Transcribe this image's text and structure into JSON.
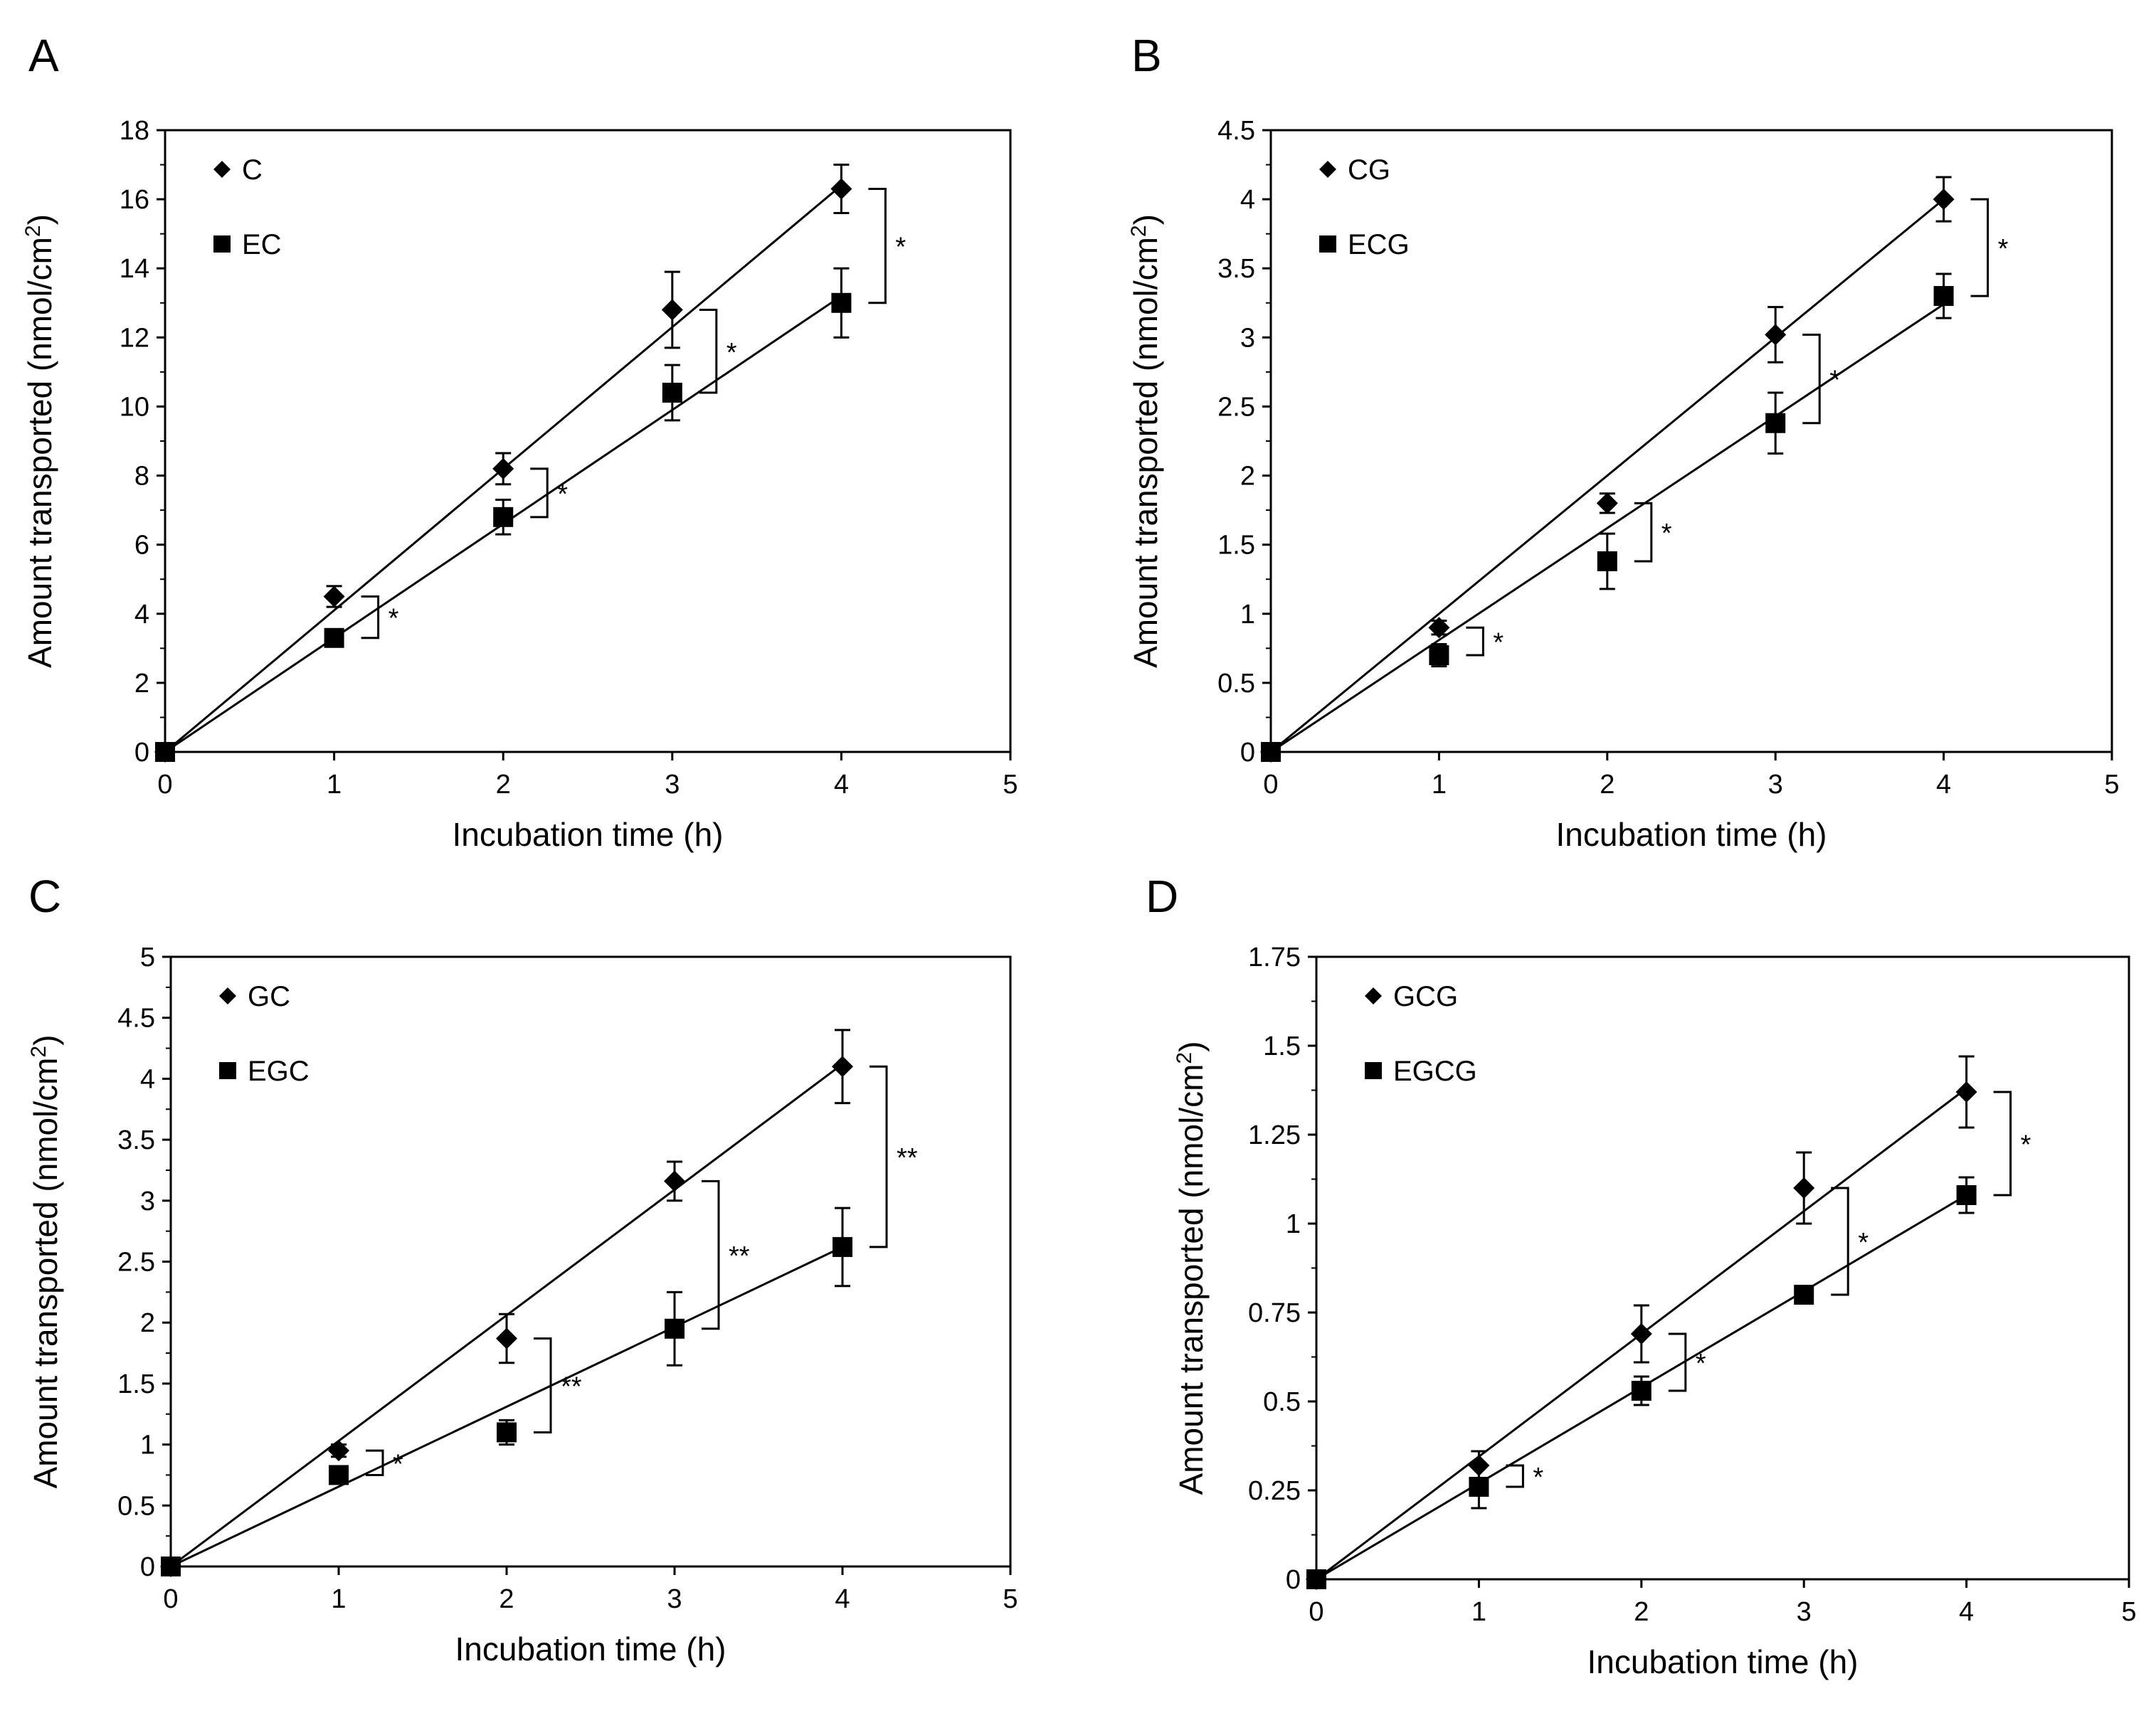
{
  "chart_data": [
    {
      "type": "scatter",
      "panel": "A",
      "xlabel": "Incubation time  (h)",
      "ylabel": "Amount transported (nmol/cm",
      "ylabel_sup": "2",
      "ylabel_end": ")",
      "xlim": [
        0,
        5
      ],
      "ylim": [
        0,
        18
      ],
      "xticks": [
        "0",
        "1",
        "2",
        "3",
        "4",
        "5"
      ],
      "yticks": [
        "0",
        "2",
        "4",
        "6",
        "8",
        "10",
        "12",
        "14",
        "16",
        "18"
      ],
      "legend_position": "top-left",
      "series": [
        {
          "name": "C",
          "marker": "diamond",
          "x": [
            0,
            1,
            2,
            3,
            4
          ],
          "y": [
            0,
            4.5,
            8.2,
            12.8,
            16.3
          ],
          "err": [
            0,
            0.3,
            0.45,
            1.1,
            0.7
          ],
          "fit_slope": 4.1
        },
        {
          "name": "EC",
          "marker": "square",
          "x": [
            0,
            1,
            2,
            3,
            4
          ],
          "y": [
            0,
            3.3,
            6.8,
            10.4,
            13.0
          ],
          "err": [
            0,
            0.2,
            0.5,
            0.8,
            1.0
          ],
          "fit_slope": 3.3
        }
      ],
      "significance": [
        {
          "x": 1,
          "label": "*"
        },
        {
          "x": 2,
          "label": "*"
        },
        {
          "x": 3,
          "label": "*"
        },
        {
          "x": 4,
          "label": "*"
        }
      ]
    },
    {
      "type": "scatter",
      "panel": "B",
      "xlabel": "Incubation time  (h)",
      "ylabel": "Amount transported (nmol/cm",
      "ylabel_sup": "2",
      "ylabel_end": ")",
      "xlim": [
        0,
        5
      ],
      "ylim": [
        0,
        4.5
      ],
      "xticks": [
        "0",
        "1",
        "2",
        "3",
        "4",
        "5"
      ],
      "yticks": [
        "0",
        "0.5",
        "1",
        "1.5",
        "2",
        "2.5",
        "3",
        "3.5",
        "4",
        "4.5"
      ],
      "legend_position": "top-left",
      "series": [
        {
          "name": "CG",
          "marker": "diamond",
          "x": [
            0,
            1,
            2,
            3,
            4
          ],
          "y": [
            0,
            0.9,
            1.8,
            3.02,
            4.0
          ],
          "err": [
            0,
            0.05,
            0.07,
            0.2,
            0.16
          ],
          "fit_slope": 1.0
        },
        {
          "name": "ECG",
          "marker": "square",
          "x": [
            0,
            1,
            2,
            3,
            4
          ],
          "y": [
            0,
            0.7,
            1.38,
            2.38,
            3.3
          ],
          "err": [
            0,
            0.08,
            0.2,
            0.22,
            0.16
          ],
          "fit_slope": 0.81
        }
      ],
      "significance": [
        {
          "x": 1,
          "label": "*"
        },
        {
          "x": 2,
          "label": "*"
        },
        {
          "x": 3,
          "label": "*"
        },
        {
          "x": 4,
          "label": "*"
        }
      ]
    },
    {
      "type": "scatter",
      "panel": "C",
      "xlabel": "Incubation time  (h)",
      "ylabel": "Amount transported (nmol/cm",
      "ylabel_sup": "2",
      "ylabel_end": ")",
      "xlim": [
        0,
        5
      ],
      "ylim": [
        0,
        5
      ],
      "xticks": [
        "0",
        "1",
        "2",
        "3",
        "4",
        "5"
      ],
      "yticks": [
        "0",
        "0.5",
        "1",
        "1.5",
        "2",
        "2.5",
        "3",
        "3.5",
        "4",
        "4.5",
        "5"
      ],
      "legend_position": "top-left",
      "series": [
        {
          "name": "GC",
          "marker": "diamond",
          "x": [
            0,
            1,
            2,
            3,
            4
          ],
          "y": [
            0,
            0.95,
            1.87,
            3.16,
            4.1
          ],
          "err": [
            0,
            0.05,
            0.2,
            0.16,
            0.3
          ],
          "fit_slope": 1.03
        },
        {
          "name": "EGC",
          "marker": "square",
          "x": [
            0,
            1,
            2,
            3,
            4
          ],
          "y": [
            0,
            0.75,
            1.1,
            1.95,
            2.62
          ],
          "err": [
            0,
            0.06,
            0.1,
            0.3,
            0.32
          ],
          "fit_slope": 0.655
        }
      ],
      "significance": [
        {
          "x": 1,
          "label": "*"
        },
        {
          "x": 2,
          "label": "**"
        },
        {
          "x": 3,
          "label": "**"
        },
        {
          "x": 4,
          "label": "**"
        }
      ]
    },
    {
      "type": "scatter",
      "panel": "D",
      "xlabel": "Incubation time  (h)",
      "ylabel": "Amount transported (nmol/cm",
      "ylabel_sup": "2",
      "ylabel_end": ")",
      "xlim": [
        0,
        5
      ],
      "ylim": [
        0,
        1.75
      ],
      "xticks": [
        "0",
        "1",
        "2",
        "3",
        "4",
        "5"
      ],
      "yticks": [
        "0",
        "0.25",
        "0.5",
        "0.75",
        "1",
        "1.25",
        "1.5",
        "1.75"
      ],
      "legend_position": "top-left",
      "series": [
        {
          "name": "GCG",
          "marker": "diamond",
          "x": [
            0,
            1,
            2,
            3,
            4
          ],
          "y": [
            0,
            0.32,
            0.69,
            1.1,
            1.37
          ],
          "err": [
            0,
            0.04,
            0.08,
            0.1,
            0.1
          ],
          "fit_slope": 0.345
        },
        {
          "name": "EGCG",
          "marker": "square",
          "x": [
            0,
            1,
            2,
            3,
            4
          ],
          "y": [
            0,
            0.26,
            0.53,
            0.8,
            1.08
          ],
          "err": [
            0,
            0.06,
            0.04,
            0.01,
            0.05
          ],
          "fit_slope": 0.27
        }
      ],
      "significance": [
        {
          "x": 1,
          "label": "*"
        },
        {
          "x": 2,
          "label": "*"
        },
        {
          "x": 3,
          "label": "*"
        },
        {
          "x": 4,
          "label": "*"
        }
      ]
    }
  ]
}
